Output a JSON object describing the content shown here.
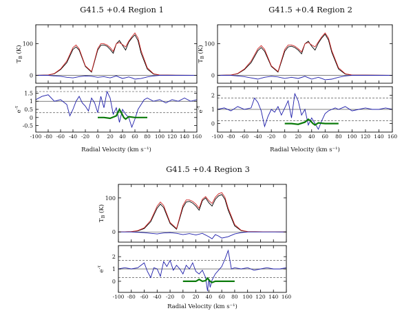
{
  "chart_data": [
    {
      "type": "line",
      "title": "G41.5 +0.4   Region 1",
      "xlabel": "Radial Velocity (km s⁻¹)",
      "x_ticks": [
        -100,
        -80,
        -60,
        -40,
        -20,
        0,
        20,
        40,
        60,
        80,
        100,
        120,
        140,
        160
      ],
      "top_panel": {
        "ylabel": "T_B (K)",
        "ylim": [
          -25,
          160
        ],
        "y_ticks": [
          0,
          100
        ],
        "series": [
          {
            "color": "#000000",
            "x": [
              -100,
              -80,
              -70,
              -60,
              -50,
              -40,
              -35,
              -30,
              -20,
              -10,
              0,
              5,
              10,
              15,
              20,
              25,
              30,
              35,
              40,
              45,
              50,
              55,
              60,
              65,
              70,
              80,
              90,
              100,
              160
            ],
            "y": [
              0,
              1,
              5,
              18,
              40,
              82,
              90,
              80,
              28,
              10,
              80,
              95,
              96,
              92,
              82,
              70,
              100,
              110,
              95,
              80,
              105,
              118,
              128,
              110,
              70,
              20,
              4,
              1,
              0
            ]
          },
          {
            "color": "#cc2020",
            "x": [
              -100,
              -80,
              -70,
              -60,
              -50,
              -40,
              -35,
              -30,
              -20,
              -10,
              0,
              5,
              10,
              15,
              20,
              25,
              30,
              35,
              40,
              45,
              50,
              55,
              60,
              65,
              70,
              80,
              90,
              100,
              160
            ],
            "y": [
              0,
              1,
              6,
              20,
              45,
              88,
              96,
              84,
              30,
              12,
              85,
              100,
              100,
              96,
              88,
              76,
              100,
              104,
              97,
              90,
              108,
              122,
              134,
              118,
              78,
              24,
              5,
              1,
              0
            ]
          },
          {
            "color": "#1a1aa8",
            "x": [
              -100,
              -80,
              -70,
              -60,
              -50,
              -40,
              -30,
              -20,
              -10,
              0,
              10,
              20,
              30,
              40,
              50,
              55,
              60,
              70,
              80,
              90,
              100,
              160
            ],
            "y": [
              0,
              0,
              -2,
              -3,
              -6,
              -8,
              -4,
              -2,
              -3,
              -6,
              -4,
              -8,
              -2,
              -10,
              -5,
              -8,
              -12,
              -10,
              -5,
              -2,
              0,
              0
            ]
          }
        ]
      },
      "bottom_panel": {
        "ylabel": "e^-τ",
        "ylim": [
          -0.9,
          1.9
        ],
        "y_ticks": [
          -0.5,
          0,
          0.5,
          1,
          1.5
        ],
        "ref_lines": [
          {
            "y": 1,
            "style": "solid"
          },
          {
            "y": 1.6,
            "style": "dashed"
          },
          {
            "y": 0.3,
            "style": "dashed"
          }
        ],
        "series": [
          {
            "color": "#1a1aa8",
            "x": [
              -100,
              -90,
              -80,
              -70,
              -60,
              -50,
              -45,
              -40,
              -35,
              -30,
              -25,
              -20,
              -15,
              -10,
              -5,
              0,
              5,
              10,
              15,
              20,
              25,
              30,
              35,
              40,
              45,
              50,
              55,
              60,
              65,
              70,
              75,
              80,
              90,
              100,
              110,
              120,
              130,
              140,
              150,
              160
            ],
            "y": [
              1.1,
              1.3,
              1.4,
              1.0,
              1.1,
              0.8,
              0.1,
              0.5,
              1.0,
              1.3,
              0.9,
              0.7,
              0.4,
              1.2,
              0.9,
              0.3,
              1.3,
              0.6,
              1.6,
              1.2,
              0.2,
              0.6,
              -0.3,
              0.5,
              0.2,
              0.0,
              -0.6,
              -0.1,
              0.5,
              0.8,
              1.1,
              1.2,
              1.0,
              1.1,
              0.9,
              1.1,
              1.0,
              1.2,
              1.0,
              1.1
            ]
          },
          {
            "color": "#0a7a0a",
            "x": [
              0,
              10,
              20,
              30,
              35,
              38,
              42,
              45,
              50,
              60,
              70,
              80
            ],
            "y": [
              0.0,
              0.0,
              -0.05,
              0.1,
              0.5,
              0.3,
              0.0,
              -0.1,
              0.05,
              0.0,
              0.0,
              0.0
            ]
          }
        ]
      }
    },
    {
      "type": "line",
      "title": "G41.5 +0.4   Region 2",
      "xlabel": "Radial Velocity (km s⁻¹)",
      "x_ticks": [
        -100,
        -80,
        -60,
        -40,
        -20,
        0,
        20,
        40,
        60,
        80,
        100,
        120,
        140,
        160
      ],
      "top_panel": {
        "ylabel": "T_B (K)",
        "ylim": [
          -25,
          160
        ],
        "y_ticks": [
          0,
          100
        ],
        "series": [
          {
            "color": "#000000",
            "x": [
              -100,
              -80,
              -70,
              -60,
              -50,
              -40,
              -35,
              -30,
              -20,
              -10,
              0,
              5,
              10,
              15,
              20,
              25,
              30,
              35,
              40,
              45,
              50,
              55,
              60,
              65,
              70,
              80,
              90,
              100,
              160
            ],
            "y": [
              0,
              1,
              5,
              18,
              40,
              78,
              88,
              76,
              28,
              10,
              76,
              90,
              92,
              88,
              80,
              68,
              100,
              108,
              92,
              80,
              102,
              118,
              130,
              112,
              72,
              20,
              4,
              1,
              0
            ]
          },
          {
            "color": "#cc2020",
            "x": [
              -100,
              -80,
              -70,
              -60,
              -50,
              -40,
              -35,
              -30,
              -20,
              -10,
              0,
              5,
              10,
              15,
              20,
              25,
              30,
              35,
              40,
              45,
              50,
              55,
              60,
              65,
              70,
              80,
              90,
              100,
              160
            ],
            "y": [
              0,
              1,
              6,
              20,
              45,
              84,
              94,
              82,
              30,
              12,
              82,
              96,
              96,
              92,
              84,
              74,
              100,
              104,
              96,
              90,
              106,
              122,
              134,
              118,
              78,
              24,
              5,
              1,
              0
            ]
          },
          {
            "color": "#1a1aa8",
            "x": [
              -100,
              -80,
              -70,
              -60,
              -50,
              -40,
              -30,
              -20,
              -10,
              0,
              10,
              20,
              30,
              40,
              50,
              55,
              60,
              70,
              80,
              90,
              100,
              160
            ],
            "y": [
              0,
              0,
              -2,
              -4,
              -8,
              -12,
              -6,
              -3,
              -5,
              -10,
              -6,
              -10,
              -3,
              -12,
              -6,
              -10,
              -14,
              -12,
              -6,
              -2,
              0,
              0
            ]
          }
        ]
      },
      "bottom_panel": {
        "ylabel": "e^-τ",
        "ylim": [
          -0.6,
          2.6
        ],
        "y_ticks": [
          0,
          1,
          2
        ],
        "ref_lines": [
          {
            "y": 1,
            "style": "solid"
          },
          {
            "y": 1.8,
            "style": "dashed"
          },
          {
            "y": 0.2,
            "style": "dashed"
          }
        ],
        "series": [
          {
            "color": "#1a1aa8",
            "x": [
              -100,
              -90,
              -80,
              -70,
              -60,
              -50,
              -45,
              -40,
              -35,
              -30,
              -25,
              -20,
              -15,
              -10,
              -5,
              0,
              5,
              10,
              15,
              20,
              25,
              30,
              35,
              40,
              45,
              50,
              55,
              60,
              65,
              70,
              75,
              80,
              90,
              100,
              110,
              120,
              130,
              140,
              150,
              160
            ],
            "y": [
              1.0,
              1.1,
              0.9,
              1.2,
              1.0,
              1.1,
              1.8,
              1.5,
              0.9,
              -0.2,
              0.5,
              1.0,
              0.8,
              1.2,
              0.6,
              1.1,
              1.6,
              0.4,
              2.1,
              1.6,
              0.6,
              1.0,
              -0.1,
              0.4,
              0.0,
              -0.4,
              0.2,
              0.7,
              0.9,
              1.0,
              1.1,
              1.0,
              1.2,
              0.9,
              1.0,
              1.1,
              1.0,
              1.0,
              1.1,
              1.0
            ]
          },
          {
            "color": "#0a7a0a",
            "x": [
              0,
              10,
              20,
              30,
              35,
              38,
              42,
              45,
              50,
              60,
              70,
              80
            ],
            "y": [
              0.0,
              0.0,
              -0.05,
              0.1,
              0.3,
              0.2,
              0.0,
              -0.1,
              0.05,
              0.0,
              0.0,
              0.0
            ]
          }
        ]
      }
    },
    {
      "type": "line",
      "title": "G41.5 +0.4   Region 3",
      "xlabel": "Radial Velocity (km s⁻¹)",
      "x_ticks": [
        -100,
        -80,
        -60,
        -40,
        -20,
        0,
        20,
        40,
        60,
        80,
        100,
        120,
        140,
        160
      ],
      "top_panel": {
        "ylabel": "T_B (K)",
        "ylim": [
          -30,
          140
        ],
        "y_ticks": [
          0,
          100
        ],
        "series": [
          {
            "color": "#000000",
            "x": [
              -100,
              -80,
              -70,
              -60,
              -50,
              -40,
              -35,
              -30,
              -20,
              -10,
              0,
              5,
              10,
              15,
              20,
              25,
              30,
              35,
              40,
              45,
              50,
              55,
              60,
              65,
              70,
              80,
              90,
              100,
              160
            ],
            "y": [
              0,
              1,
              3,
              10,
              30,
              70,
              82,
              72,
              25,
              8,
              72,
              88,
              90,
              85,
              76,
              64,
              92,
              100,
              86,
              76,
              96,
              106,
              110,
              96,
              64,
              18,
              4,
              1,
              0
            ]
          },
          {
            "color": "#cc2020",
            "x": [
              -100,
              -80,
              -70,
              -60,
              -50,
              -40,
              -35,
              -30,
              -20,
              -10,
              0,
              5,
              10,
              15,
              20,
              25,
              30,
              35,
              40,
              45,
              50,
              55,
              60,
              65,
              70,
              80,
              90,
              100,
              160
            ],
            "y": [
              0,
              1,
              4,
              12,
              34,
              76,
              88,
              78,
              28,
              10,
              78,
              94,
              94,
              90,
              82,
              70,
              96,
              104,
              92,
              84,
              102,
              112,
              116,
              102,
              70,
              22,
              5,
              1,
              0
            ]
          },
          {
            "color": "#1a1aa8",
            "x": [
              -100,
              -80,
              -70,
              -60,
              -50,
              -40,
              -30,
              -20,
              -10,
              0,
              10,
              20,
              30,
              40,
              45,
              50,
              55,
              60,
              70,
              80,
              90,
              100,
              160
            ],
            "y": [
              0,
              0,
              -1,
              -2,
              -4,
              -6,
              -3,
              -2,
              -4,
              -8,
              -5,
              -9,
              -4,
              -14,
              -20,
              -8,
              -12,
              -18,
              -14,
              -6,
              -2,
              0,
              0
            ]
          }
        ]
      },
      "bottom_panel": {
        "ylabel": "e^-τ",
        "ylim": [
          -0.9,
          2.9
        ],
        "y_ticks": [
          0,
          1,
          2
        ],
        "ref_lines": [
          {
            "y": 1,
            "style": "solid"
          },
          {
            "y": 1.7,
            "style": "dashed"
          },
          {
            "y": 0.3,
            "style": "dashed"
          }
        ],
        "series": [
          {
            "color": "#1a1aa8",
            "x": [
              -100,
              -90,
              -80,
              -70,
              -60,
              -55,
              -50,
              -45,
              -40,
              -35,
              -30,
              -25,
              -20,
              -15,
              -10,
              -5,
              0,
              5,
              10,
              15,
              20,
              25,
              30,
              35,
              38,
              40,
              42,
              45,
              50,
              55,
              60,
              65,
              70,
              75,
              80,
              90,
              100,
              110,
              120,
              130,
              140,
              150,
              160
            ],
            "y": [
              1.0,
              1.1,
              1.0,
              1.1,
              1.5,
              0.8,
              0.3,
              1.1,
              1.0,
              0.4,
              1.6,
              1.2,
              1.7,
              0.9,
              1.3,
              1.0,
              0.6,
              1.3,
              1.0,
              1.5,
              0.8,
              0.6,
              0.9,
              0.3,
              -0.8,
              0.2,
              -0.5,
              0.1,
              0.6,
              0.9,
              1.2,
              1.8,
              2.5,
              1.0,
              1.1,
              1.0,
              1.1,
              0.9,
              1.0,
              1.1,
              1.0,
              1.0,
              1.1
            ]
          },
          {
            "color": "#0a7a0a",
            "x": [
              0,
              10,
              20,
              25,
              30,
              35,
              38,
              42,
              45,
              50,
              60,
              70,
              80
            ],
            "y": [
              0.0,
              0.0,
              0.0,
              0.15,
              0.0,
              0.05,
              0.25,
              0.0,
              -0.1,
              0.0,
              0.0,
              0.0,
              0.0
            ]
          }
        ]
      }
    }
  ]
}
